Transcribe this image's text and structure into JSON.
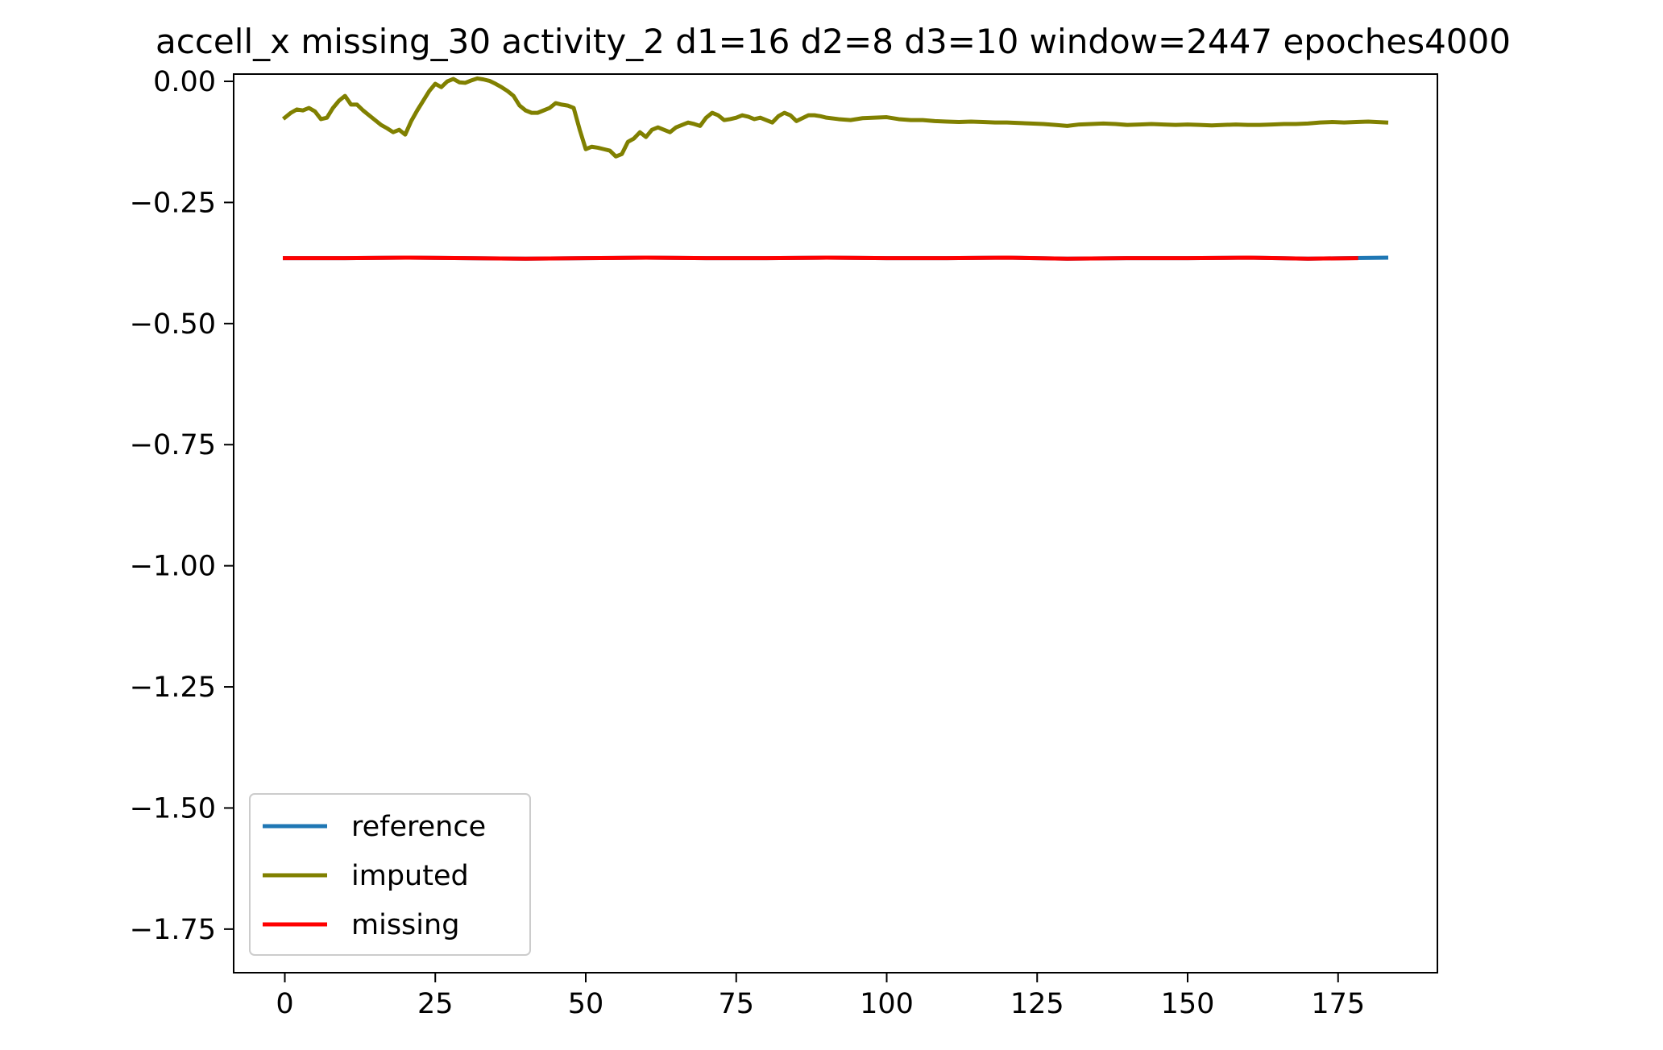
{
  "chart_data": {
    "type": "line",
    "title": "accell_x missing_30 activity_2 d1=16 d2=8 d3=10 window=2447 epoches4000",
    "xlabel": "",
    "ylabel": "",
    "xlim": [
      -8.5,
      191.5
    ],
    "ylim": [
      -1.84,
      0.015
    ],
    "x_ticks": [
      0,
      25,
      50,
      75,
      100,
      125,
      150,
      175
    ],
    "x_tick_labels": [
      "0",
      "25",
      "50",
      "75",
      "100",
      "125",
      "150",
      "175"
    ],
    "y_ticks": [
      0.0,
      -0.25,
      -0.5,
      -0.75,
      -1.0,
      -1.25,
      -1.5,
      -1.75
    ],
    "y_tick_labels": [
      "0.00",
      "−0.25",
      "−0.50",
      "−0.75",
      "−1.00",
      "−1.25",
      "−1.50",
      "−1.75"
    ],
    "grid": false,
    "legend_position": "lower-left",
    "series": [
      {
        "name": "reference",
        "color": "#1f77b4",
        "x": [
          0,
          10,
          20,
          30,
          40,
          50,
          60,
          70,
          80,
          90,
          100,
          110,
          120,
          130,
          140,
          150,
          160,
          170,
          183
        ],
        "values": [
          -0.365,
          -0.365,
          -0.364,
          -0.365,
          -0.366,
          -0.365,
          -0.364,
          -0.365,
          -0.365,
          -0.364,
          -0.365,
          -0.365,
          -0.364,
          -0.366,
          -0.365,
          -0.365,
          -0.364,
          -0.366,
          -0.364
        ]
      },
      {
        "name": "imputed",
        "color": "#808000",
        "x": [
          0,
          1,
          2,
          3,
          4,
          5,
          6,
          7,
          8,
          9,
          10,
          11,
          12,
          13,
          14,
          15,
          16,
          17,
          18,
          19,
          20,
          21,
          22,
          23,
          24,
          25,
          26,
          27,
          28,
          29,
          30,
          31,
          32,
          33,
          34,
          35,
          36,
          37,
          38,
          39,
          40,
          41,
          42,
          43,
          44,
          45,
          46,
          47,
          48,
          49,
          50,
          51,
          52,
          53,
          54,
          55,
          56,
          57,
          58,
          59,
          60,
          61,
          62,
          63,
          64,
          65,
          66,
          67,
          68,
          69,
          70,
          71,
          72,
          73,
          74,
          75,
          76,
          77,
          78,
          79,
          80,
          81,
          82,
          83,
          84,
          85,
          86,
          87,
          88,
          89,
          90,
          92,
          94,
          96,
          98,
          100,
          102,
          104,
          106,
          108,
          110,
          112,
          114,
          116,
          118,
          120,
          122,
          124,
          126,
          128,
          130,
          132,
          134,
          136,
          138,
          140,
          142,
          144,
          146,
          148,
          150,
          152,
          154,
          156,
          158,
          160,
          162,
          164,
          166,
          168,
          170,
          172,
          174,
          176,
          178,
          180,
          183
        ],
        "values": [
          -0.075,
          -0.065,
          -0.058,
          -0.06,
          -0.055,
          -0.062,
          -0.078,
          -0.075,
          -0.055,
          -0.04,
          -0.03,
          -0.048,
          -0.048,
          -0.06,
          -0.07,
          -0.08,
          -0.09,
          -0.097,
          -0.105,
          -0.1,
          -0.11,
          -0.082,
          -0.06,
          -0.04,
          -0.02,
          -0.005,
          -0.012,
          0.0,
          0.005,
          -0.002,
          -0.003,
          0.002,
          0.006,
          0.004,
          0.001,
          -0.005,
          -0.012,
          -0.02,
          -0.03,
          -0.05,
          -0.06,
          -0.065,
          -0.065,
          -0.06,
          -0.055,
          -0.045,
          -0.048,
          -0.05,
          -0.055,
          -0.1,
          -0.14,
          -0.135,
          -0.137,
          -0.14,
          -0.143,
          -0.155,
          -0.15,
          -0.125,
          -0.118,
          -0.105,
          -0.115,
          -0.1,
          -0.095,
          -0.1,
          -0.105,
          -0.095,
          -0.09,
          -0.085,
          -0.088,
          -0.092,
          -0.075,
          -0.065,
          -0.07,
          -0.08,
          -0.078,
          -0.075,
          -0.07,
          -0.073,
          -0.078,
          -0.075,
          -0.08,
          -0.085,
          -0.072,
          -0.065,
          -0.07,
          -0.082,
          -0.076,
          -0.07,
          -0.07,
          -0.072,
          -0.075,
          -0.078,
          -0.08,
          -0.076,
          -0.075,
          -0.074,
          -0.078,
          -0.08,
          -0.08,
          -0.082,
          -0.083,
          -0.084,
          -0.083,
          -0.084,
          -0.085,
          -0.085,
          -0.086,
          -0.087,
          -0.088,
          -0.09,
          -0.092,
          -0.089,
          -0.088,
          -0.087,
          -0.088,
          -0.09,
          -0.089,
          -0.088,
          -0.089,
          -0.09,
          -0.089,
          -0.09,
          -0.091,
          -0.09,
          -0.089,
          -0.09,
          -0.09,
          -0.089,
          -0.088,
          -0.088,
          -0.087,
          -0.085,
          -0.084,
          -0.085,
          -0.084,
          -0.083,
          -0.085
        ]
      },
      {
        "name": "missing",
        "color": "#ff0000",
        "x": [
          0,
          10,
          20,
          30,
          40,
          50,
          60,
          70,
          80,
          90,
          100,
          110,
          120,
          130,
          140,
          150,
          160,
          170,
          178
        ],
        "values": [
          -0.365,
          -0.365,
          -0.364,
          -0.365,
          -0.366,
          -0.365,
          -0.364,
          -0.365,
          -0.365,
          -0.364,
          -0.365,
          -0.365,
          -0.364,
          -0.366,
          -0.365,
          -0.365,
          -0.364,
          -0.366,
          -0.365
        ]
      }
    ]
  }
}
